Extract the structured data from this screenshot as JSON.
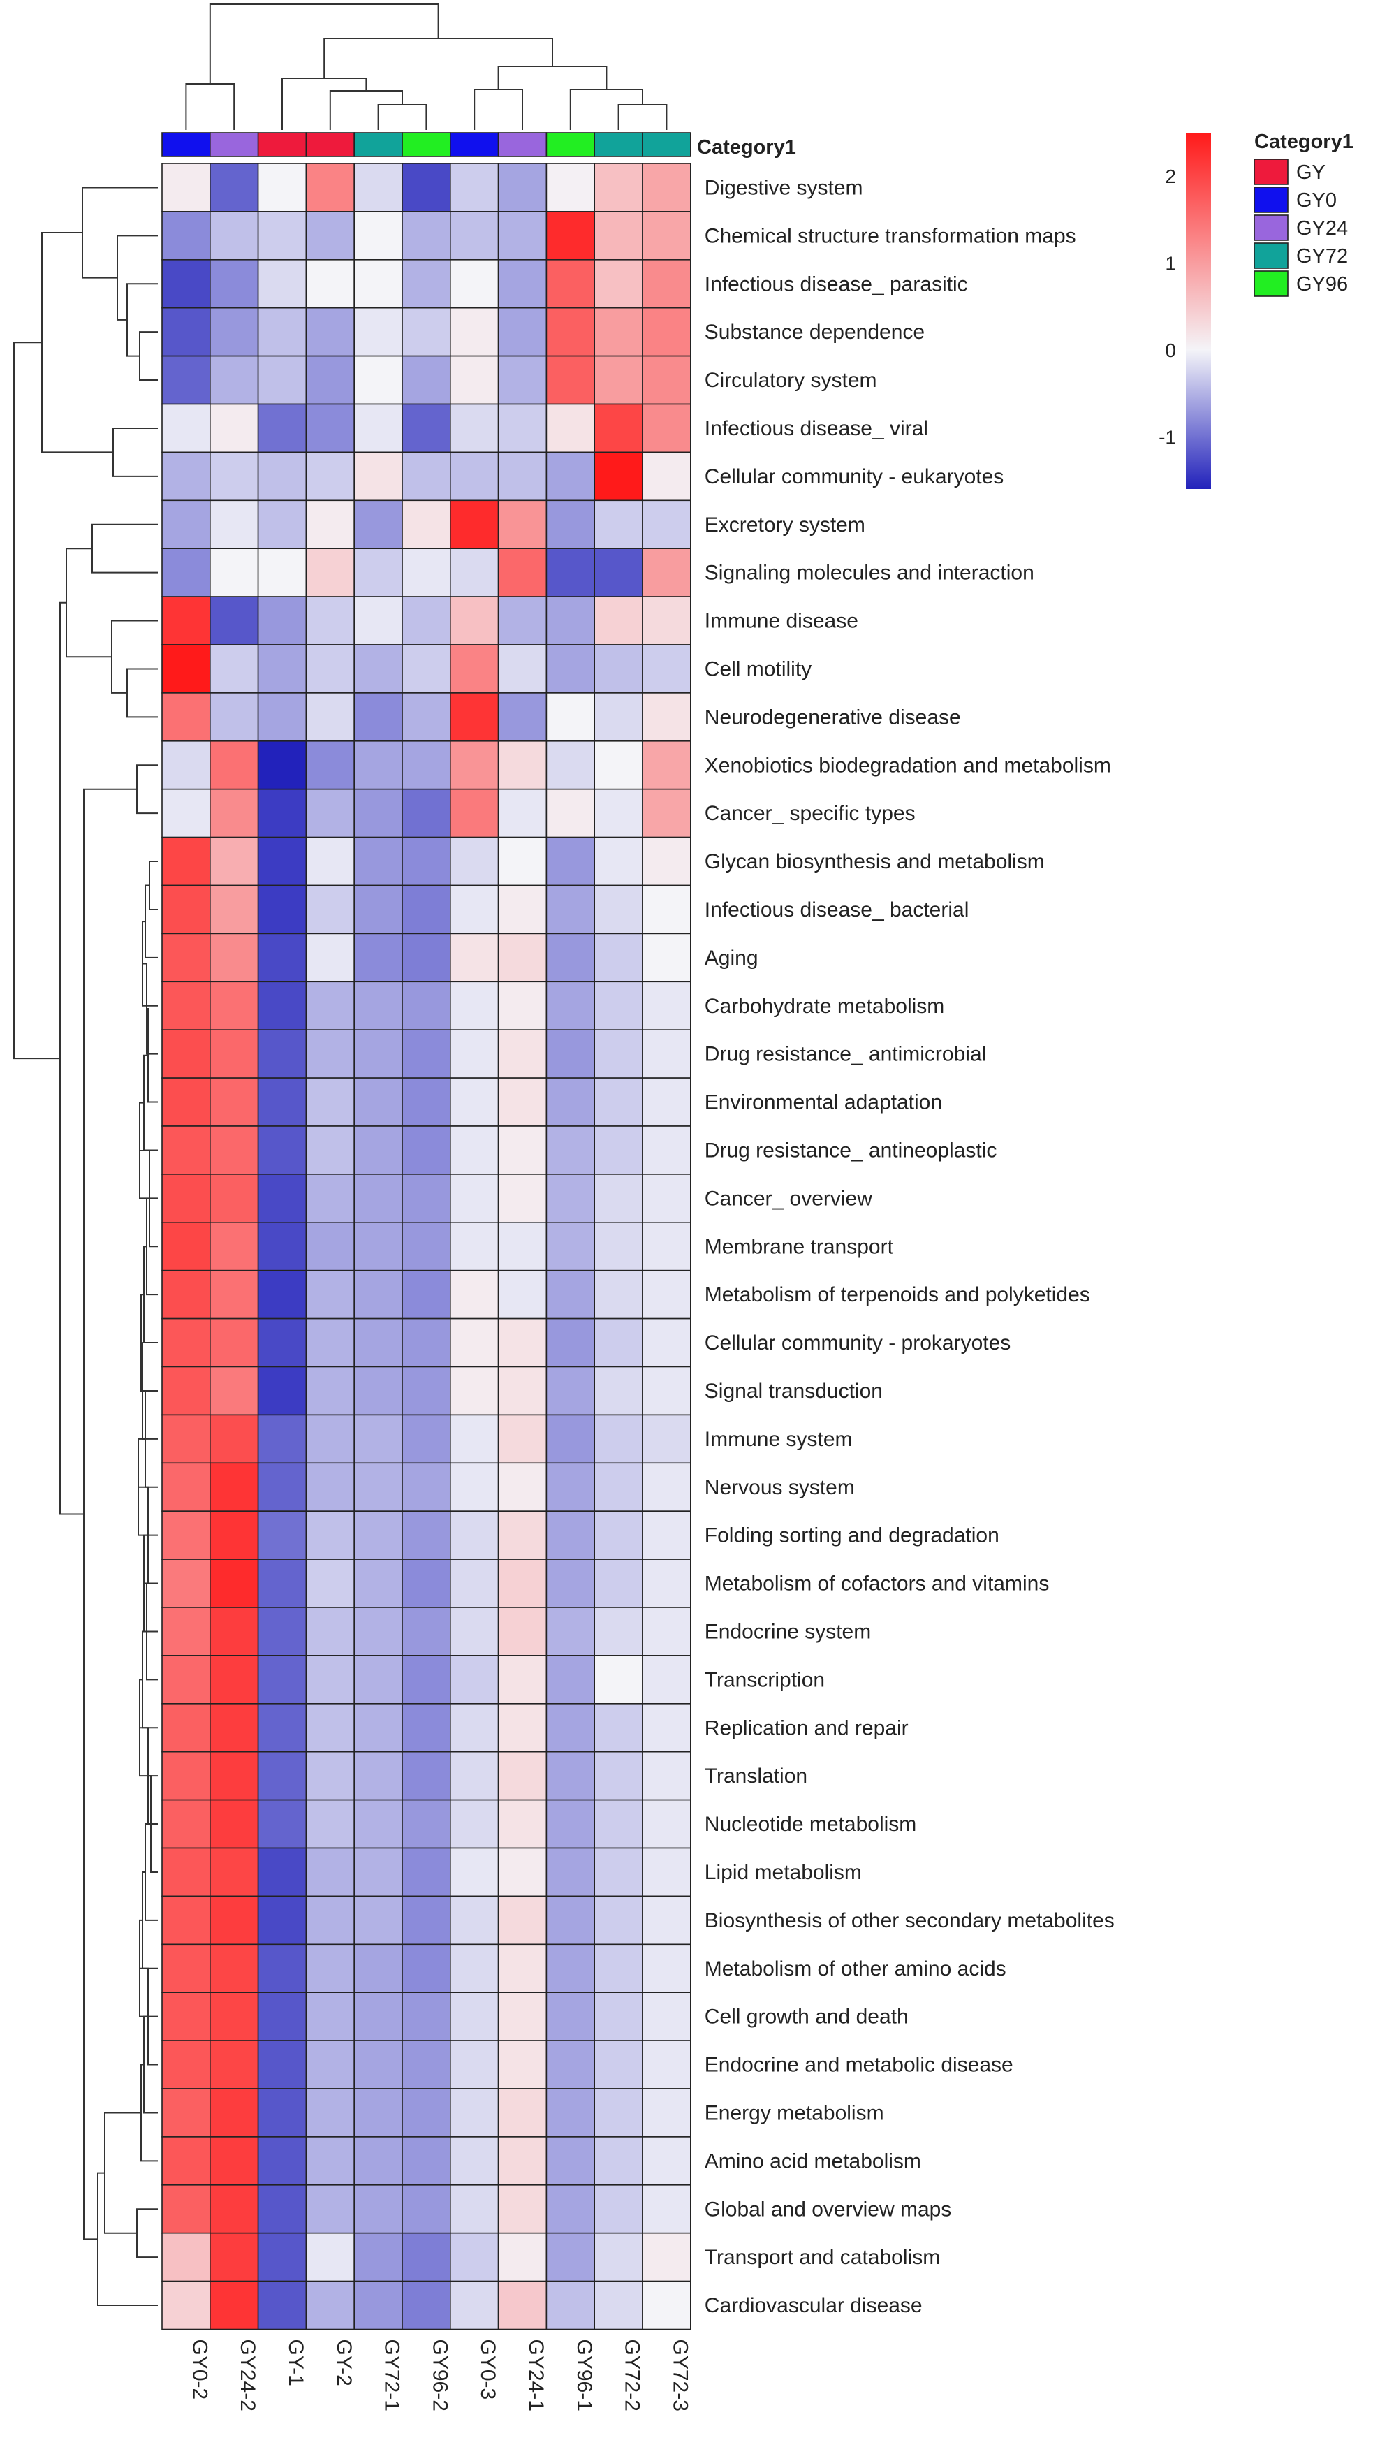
{
  "chart_data": {
    "type": "heatmap",
    "annotation_title": "Category1",
    "columns": [
      "GY0-2",
      "GY24-2",
      "GY-1",
      "GY-2",
      "GY72-1",
      "GY96-2",
      "GY0-3",
      "GY24-1",
      "GY96-1",
      "GY72-2",
      "GY72-3"
    ],
    "column_groups": [
      "GY0",
      "GY24",
      "GY",
      "GY",
      "GY72",
      "GY96",
      "GY0",
      "GY24",
      "GY96",
      "GY72",
      "GY72"
    ],
    "legend": {
      "groups": [
        {
          "name": "GY",
          "color": "#ee1a3c"
        },
        {
          "name": "GY0",
          "color": "#1010ee"
        },
        {
          "name": "GY24",
          "color": "#9966dd"
        },
        {
          "name": "GY72",
          "color": "#11a39a"
        },
        {
          "name": "GY96",
          "color": "#22ee22"
        }
      ]
    },
    "color_scale": {
      "min": -1.6,
      "max": 2.5,
      "low": "#2222bb",
      "mid": "#f4f4f8",
      "high": "#ff1a1a",
      "ticks": [
        "2",
        "1",
        "0",
        "-1"
      ]
    },
    "rows": [
      {
        "label": "Digestive system",
        "values": [
          0.1,
          -1.1,
          0.0,
          1.3,
          -0.2,
          -1.3,
          -0.3,
          -0.6,
          0.05,
          0.6,
          0.9
        ]
      },
      {
        "label": "Chemical structure transformation maps",
        "values": [
          -0.8,
          -0.4,
          -0.3,
          -0.5,
          0.0,
          -0.5,
          -0.4,
          -0.5,
          2.3,
          0.7,
          0.9
        ]
      },
      {
        "label": "Infectious disease_ parasitic",
        "values": [
          -1.3,
          -0.8,
          -0.2,
          0.0,
          0.0,
          -0.5,
          0.0,
          -0.6,
          1.7,
          0.6,
          1.2
        ]
      },
      {
        "label": "Substance dependence",
        "values": [
          -1.2,
          -0.7,
          -0.4,
          -0.6,
          -0.1,
          -0.3,
          0.1,
          -0.6,
          1.7,
          1.0,
          1.3
        ]
      },
      {
        "label": "Circulatory system",
        "values": [
          -1.1,
          -0.5,
          -0.4,
          -0.7,
          0.0,
          -0.6,
          0.1,
          -0.5,
          1.7,
          1.0,
          1.2
        ]
      },
      {
        "label": "Infectious disease_ viral",
        "values": [
          -0.1,
          0.1,
          -1.0,
          -0.8,
          -0.1,
          -1.1,
          -0.2,
          -0.3,
          0.2,
          2.0,
          1.2
        ]
      },
      {
        "label": "Cellular community - eukaryotes",
        "values": [
          -0.5,
          -0.3,
          -0.4,
          -0.3,
          0.2,
          -0.4,
          -0.4,
          -0.4,
          -0.6,
          2.5,
          0.1
        ]
      },
      {
        "label": "Excretory system",
        "values": [
          -0.6,
          -0.1,
          -0.4,
          0.1,
          -0.7,
          0.2,
          2.3,
          1.1,
          -0.7,
          -0.3,
          -0.3
        ]
      },
      {
        "label": "Signaling molecules and interaction",
        "values": [
          -0.8,
          0.0,
          0.0,
          0.4,
          -0.3,
          -0.1,
          -0.2,
          1.6,
          -1.2,
          -1.2,
          1.0
        ]
      },
      {
        "label": "Immune disease",
        "values": [
          2.2,
          -1.2,
          -0.7,
          -0.3,
          -0.1,
          -0.4,
          0.6,
          -0.5,
          -0.6,
          0.4,
          0.3
        ]
      },
      {
        "label": "Cell motility",
        "values": [
          2.5,
          -0.3,
          -0.6,
          -0.3,
          -0.5,
          -0.3,
          1.3,
          -0.2,
          -0.6,
          -0.4,
          -0.3
        ]
      },
      {
        "label": "Neurodegenerative disease",
        "values": [
          1.5,
          -0.4,
          -0.6,
          -0.2,
          -0.8,
          -0.5,
          2.2,
          -0.7,
          0.0,
          -0.2,
          0.2
        ]
      },
      {
        "label": "Xenobiotics biodegradation and metabolism",
        "values": [
          -0.2,
          1.5,
          -1.6,
          -0.8,
          -0.6,
          -0.6,
          1.1,
          0.3,
          -0.2,
          0.0,
          0.9
        ]
      },
      {
        "label": "Cancer_ specific types",
        "values": [
          -0.1,
          1.2,
          -1.4,
          -0.5,
          -0.7,
          -1.0,
          1.4,
          -0.1,
          0.1,
          -0.1,
          0.9
        ]
      },
      {
        "label": "Glycan biosynthesis and metabolism",
        "values": [
          2.0,
          0.8,
          -1.4,
          -0.1,
          -0.7,
          -0.8,
          -0.2,
          0.0,
          -0.7,
          -0.1,
          0.1
        ]
      },
      {
        "label": "Infectious disease_ bacterial",
        "values": [
          1.9,
          1.0,
          -1.4,
          -0.3,
          -0.7,
          -0.9,
          -0.1,
          0.1,
          -0.6,
          -0.2,
          0.0
        ]
      },
      {
        "label": "Aging",
        "values": [
          1.8,
          1.2,
          -1.3,
          -0.1,
          -0.8,
          -0.9,
          0.2,
          0.3,
          -0.7,
          -0.3,
          0.0
        ]
      },
      {
        "label": "Carbohydrate metabolism",
        "values": [
          1.8,
          1.5,
          -1.3,
          -0.5,
          -0.6,
          -0.7,
          -0.1,
          0.1,
          -0.6,
          -0.3,
          -0.1
        ]
      },
      {
        "label": "Drug resistance_ antimicrobial",
        "values": [
          1.9,
          1.6,
          -1.2,
          -0.5,
          -0.6,
          -0.8,
          -0.1,
          0.2,
          -0.7,
          -0.3,
          -0.1
        ]
      },
      {
        "label": "Environmental adaptation",
        "values": [
          1.9,
          1.6,
          -1.2,
          -0.4,
          -0.6,
          -0.8,
          -0.1,
          0.2,
          -0.6,
          -0.3,
          -0.1
        ]
      },
      {
        "label": "Drug resistance_ antineoplastic",
        "values": [
          1.8,
          1.6,
          -1.2,
          -0.4,
          -0.6,
          -0.8,
          -0.1,
          0.1,
          -0.5,
          -0.3,
          -0.1
        ]
      },
      {
        "label": "Cancer_ overview",
        "values": [
          1.9,
          1.7,
          -1.3,
          -0.5,
          -0.6,
          -0.7,
          -0.1,
          0.1,
          -0.5,
          -0.2,
          -0.1
        ]
      },
      {
        "label": "Membrane transport",
        "values": [
          2.0,
          1.5,
          -1.3,
          -0.6,
          -0.6,
          -0.7,
          -0.1,
          -0.1,
          -0.5,
          -0.2,
          -0.1
        ]
      },
      {
        "label": "Metabolism of terpenoids and polyketides",
        "values": [
          1.9,
          1.5,
          -1.4,
          -0.5,
          -0.6,
          -0.8,
          0.1,
          -0.1,
          -0.6,
          -0.2,
          -0.1
        ]
      },
      {
        "label": "Cellular community - prokaryotes",
        "values": [
          1.8,
          1.6,
          -1.3,
          -0.5,
          -0.6,
          -0.7,
          0.1,
          0.2,
          -0.7,
          -0.3,
          -0.1
        ]
      },
      {
        "label": "Signal transduction",
        "values": [
          1.8,
          1.4,
          -1.4,
          -0.5,
          -0.6,
          -0.7,
          0.1,
          0.2,
          -0.6,
          -0.2,
          -0.1
        ]
      },
      {
        "label": "Immune system",
        "values": [
          1.7,
          1.9,
          -1.1,
          -0.5,
          -0.5,
          -0.7,
          -0.1,
          0.3,
          -0.7,
          -0.3,
          -0.2
        ]
      },
      {
        "label": "Nervous system",
        "values": [
          1.6,
          2.2,
          -1.1,
          -0.5,
          -0.5,
          -0.6,
          -0.1,
          0.1,
          -0.6,
          -0.3,
          -0.1
        ]
      },
      {
        "label": "Folding sorting and degradation",
        "values": [
          1.5,
          2.2,
          -1.0,
          -0.4,
          -0.5,
          -0.7,
          -0.2,
          0.3,
          -0.6,
          -0.3,
          -0.1
        ]
      },
      {
        "label": "Metabolism of cofactors and vitamins",
        "values": [
          1.4,
          2.3,
          -1.1,
          -0.3,
          -0.5,
          -0.8,
          -0.2,
          0.4,
          -0.6,
          -0.3,
          -0.1
        ]
      },
      {
        "label": "Endocrine system",
        "values": [
          1.5,
          2.1,
          -1.1,
          -0.4,
          -0.5,
          -0.7,
          -0.2,
          0.4,
          -0.5,
          -0.2,
          -0.1
        ]
      },
      {
        "label": "Transcription",
        "values": [
          1.6,
          2.1,
          -1.1,
          -0.4,
          -0.5,
          -0.8,
          -0.3,
          0.2,
          -0.6,
          0.0,
          -0.1
        ]
      },
      {
        "label": "Replication and repair",
        "values": [
          1.7,
          2.1,
          -1.1,
          -0.4,
          -0.5,
          -0.8,
          -0.2,
          0.2,
          -0.6,
          -0.3,
          -0.1
        ]
      },
      {
        "label": "Translation",
        "values": [
          1.7,
          2.1,
          -1.1,
          -0.4,
          -0.5,
          -0.8,
          -0.2,
          0.3,
          -0.6,
          -0.3,
          -0.1
        ]
      },
      {
        "label": "Nucleotide metabolism",
        "values": [
          1.7,
          2.1,
          -1.1,
          -0.4,
          -0.5,
          -0.7,
          -0.2,
          0.2,
          -0.6,
          -0.3,
          -0.1
        ]
      },
      {
        "label": "Lipid metabolism",
        "values": [
          1.8,
          2.0,
          -1.3,
          -0.5,
          -0.5,
          -0.8,
          -0.1,
          0.1,
          -0.6,
          -0.3,
          -0.1
        ]
      },
      {
        "label": "Biosynthesis of other secondary metabolites",
        "values": [
          1.8,
          2.1,
          -1.3,
          -0.5,
          -0.5,
          -0.8,
          -0.2,
          0.3,
          -0.6,
          -0.3,
          -0.1
        ]
      },
      {
        "label": "Metabolism of other amino acids",
        "values": [
          1.8,
          2.0,
          -1.2,
          -0.5,
          -0.6,
          -0.8,
          -0.2,
          0.2,
          -0.6,
          -0.3,
          -0.1
        ]
      },
      {
        "label": "Cell growth and death",
        "values": [
          1.8,
          2.0,
          -1.2,
          -0.5,
          -0.6,
          -0.7,
          -0.2,
          0.2,
          -0.6,
          -0.3,
          -0.1
        ]
      },
      {
        "label": "Endocrine and metabolic disease",
        "values": [
          1.8,
          2.0,
          -1.2,
          -0.5,
          -0.6,
          -0.7,
          -0.2,
          0.2,
          -0.6,
          -0.3,
          -0.1
        ]
      },
      {
        "label": "Energy metabolism",
        "values": [
          1.7,
          2.1,
          -1.2,
          -0.5,
          -0.6,
          -0.7,
          -0.2,
          0.3,
          -0.6,
          -0.3,
          -0.1
        ]
      },
      {
        "label": "Amino acid metabolism",
        "values": [
          1.8,
          2.1,
          -1.2,
          -0.5,
          -0.6,
          -0.7,
          -0.2,
          0.3,
          -0.6,
          -0.3,
          -0.1
        ]
      },
      {
        "label": "Global and overview maps",
        "values": [
          1.7,
          2.1,
          -1.2,
          -0.5,
          -0.6,
          -0.7,
          -0.2,
          0.3,
          -0.6,
          -0.3,
          -0.1
        ]
      },
      {
        "label": "Transport and catabolism",
        "values": [
          0.6,
          2.1,
          -1.2,
          -0.1,
          -0.7,
          -0.9,
          -0.3,
          0.1,
          -0.6,
          -0.2,
          0.1
        ]
      },
      {
        "label": "Cardiovascular disease",
        "values": [
          0.4,
          2.2,
          -1.2,
          -0.5,
          -0.7,
          -0.9,
          -0.2,
          0.5,
          -0.4,
          -0.2,
          0.0
        ]
      }
    ]
  }
}
